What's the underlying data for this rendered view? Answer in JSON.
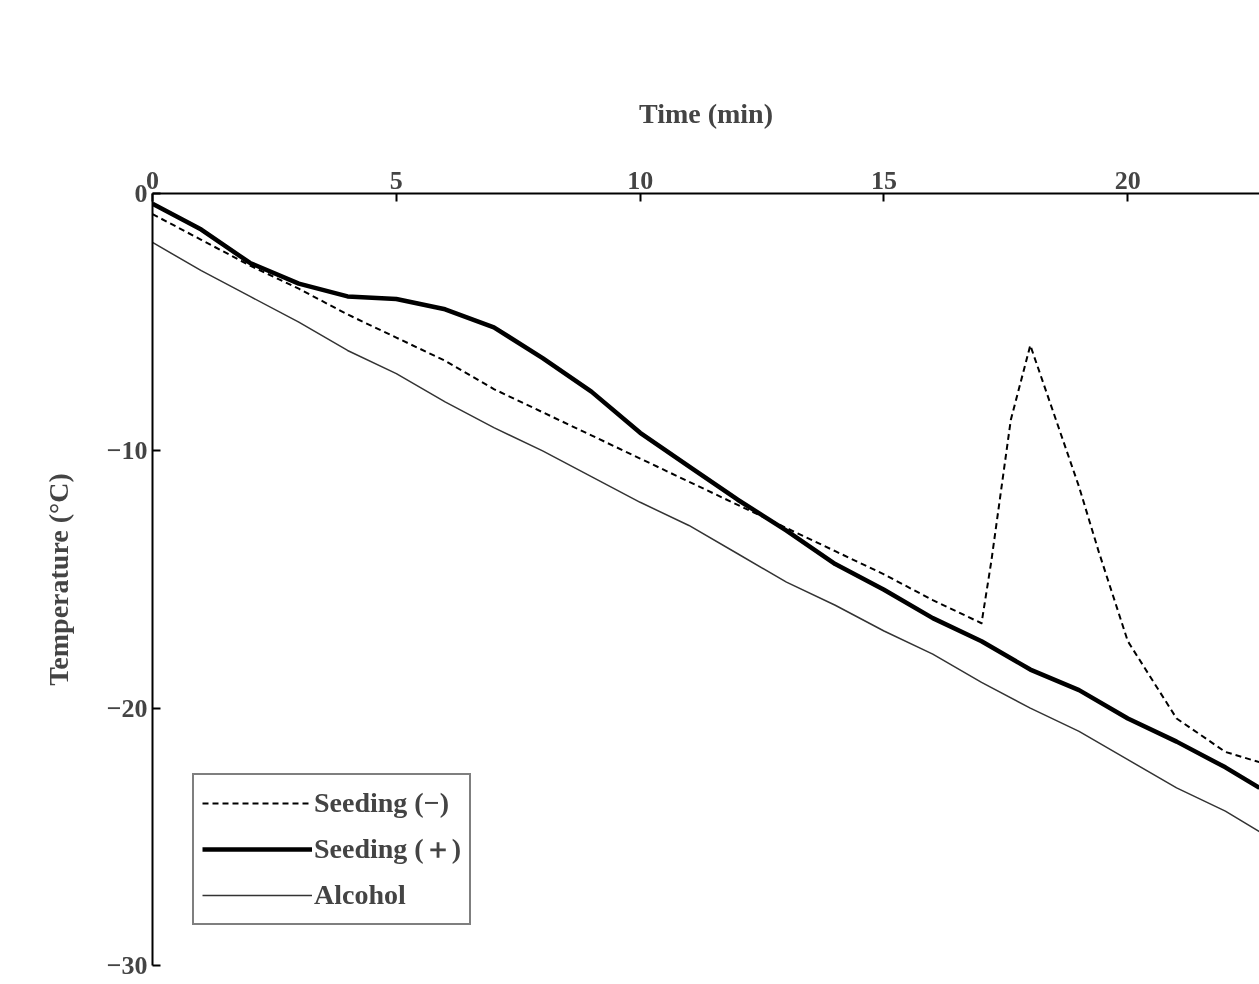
{
  "chart_data": {
    "type": "line",
    "xlabel": "Time (min)",
    "ylabel": "Temperature (°C)",
    "xlim": [
      0,
      22.7
    ],
    "xticks": [
      0,
      5,
      10,
      15,
      20
    ],
    "ylim": [
      -30,
      0
    ],
    "yticks": [
      0,
      -10,
      -20,
      -30
    ],
    "grid": false,
    "legend": "bottom left",
    "marker": "none",
    "series": [
      {
        "name": "Seeding (−)",
        "color": "#000000",
        "line_style": "dashed",
        "x": [
          0,
          1,
          2,
          3,
          4,
          5,
          6,
          7,
          8,
          9,
          10,
          11,
          12,
          13,
          14,
          15,
          16,
          17,
          17.2,
          17.6,
          18,
          19,
          19.4,
          20,
          21,
          22,
          22.7
        ],
        "values": [
          -0.8,
          -1.8,
          -2.8,
          -3.7,
          -4.7,
          -5.6,
          -6.5,
          -7.6,
          -8.5,
          -9.4,
          -10.3,
          -11.2,
          -12.1,
          -13.0,
          -13.9,
          -14.8,
          -15.8,
          -16.7,
          -14.3,
          -8.8,
          -5.9,
          -11.4,
          -13.9,
          -17.4,
          -20.4,
          -21.7,
          -22.1
        ]
      },
      {
        "name": "Seeding (＋)",
        "color": "#000000",
        "line_style": "solid",
        "x": [
          0,
          1,
          2,
          3,
          4,
          5,
          6,
          7,
          8,
          9,
          10,
          11,
          12,
          13,
          14,
          15,
          16,
          17,
          18,
          19,
          20,
          21,
          22,
          22.7
        ],
        "values": [
          -0.4,
          -1.4,
          -2.7,
          -3.5,
          -4.0,
          -4.1,
          -4.5,
          -5.2,
          -6.4,
          -7.7,
          -9.3,
          -10.6,
          -11.9,
          -13.1,
          -14.4,
          -15.4,
          -16.5,
          -17.4,
          -18.5,
          -19.3,
          -20.4,
          -21.3,
          -22.3,
          -23.1
        ]
      },
      {
        "name": "Alcohol",
        "color": "#333333",
        "line_style": "solid",
        "x": [
          0,
          1,
          2,
          3,
          4,
          5,
          6,
          7,
          8,
          9,
          10,
          11,
          12,
          13,
          14,
          15,
          16,
          17,
          18,
          19,
          20,
          21,
          22,
          22.7
        ],
        "values": [
          -1.9,
          -3.0,
          -4.0,
          -5.0,
          -6.1,
          -7.0,
          -8.1,
          -9.1,
          -10.0,
          -11.0,
          -12.0,
          -12.9,
          -14.0,
          -15.1,
          -16.0,
          -17.0,
          -17.9,
          -19.0,
          -20.0,
          -20.9,
          -22.0,
          -23.1,
          -24.0,
          -24.8
        ]
      }
    ]
  }
}
